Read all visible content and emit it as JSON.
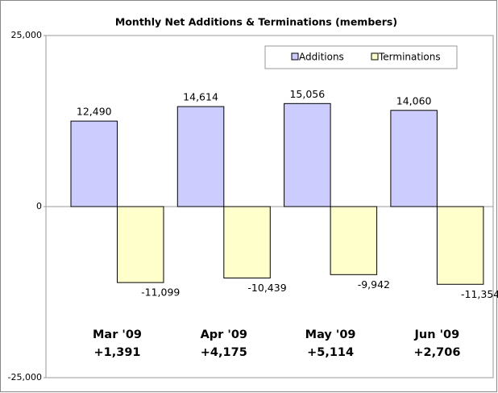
{
  "chart_data": {
    "type": "bar",
    "title": "Monthly Net Additions & Terminations (members)",
    "categories": [
      "Mar '09",
      "Apr '09",
      "May '09",
      "Jun '09"
    ],
    "annotations": [
      "+1,391",
      "+4,175",
      "+5,114",
      "+2,706"
    ],
    "series": [
      {
        "name": "Additions",
        "color": "#ccccff",
        "values": [
          12490,
          14614,
          15056,
          14060
        ],
        "value_labels": [
          "12,490",
          "14,614",
          "15,056",
          "14,060"
        ]
      },
      {
        "name": "Terminations",
        "color": "#ffffcc",
        "values": [
          -11099,
          -10439,
          -9942,
          -11354
        ],
        "value_labels": [
          "-11,099",
          "-10,439",
          "-9,942",
          "-11,354"
        ]
      }
    ],
    "ylim": [
      -25000,
      25000
    ],
    "yticks": [
      {
        "value": -25000,
        "label": "-25,000"
      },
      0,
      {
        "value": 25000,
        "label": "25,000"
      }
    ],
    "grid": false,
    "legend": "top-right"
  }
}
